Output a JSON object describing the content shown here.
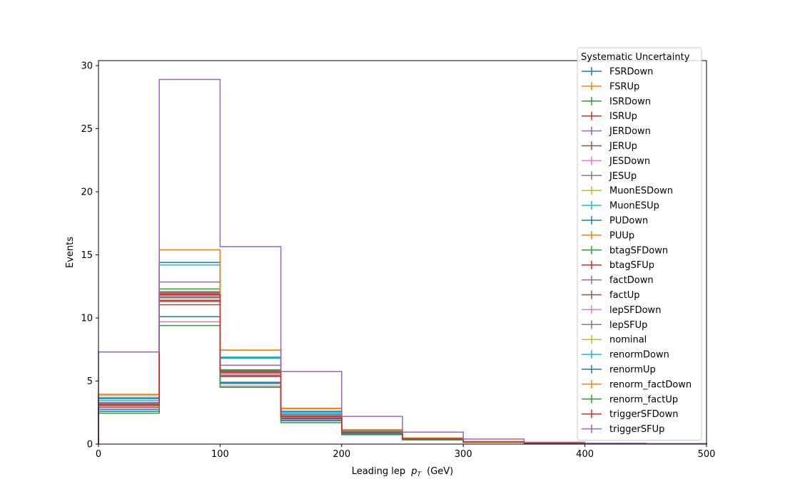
{
  "chart_data": {
    "type": "step",
    "xlabel": "Leading lep",
    "xlabel_math": "p_T",
    "xlabel_unit": "(GeV)",
    "ylabel": "Events",
    "xlim": [
      0,
      500
    ],
    "ylim": [
      0,
      30.4
    ],
    "xticks": [
      0,
      100,
      200,
      300,
      400,
      500
    ],
    "yticks": [
      0,
      5,
      10,
      15,
      20,
      25,
      30
    ],
    "bin_edges": [
      0,
      50,
      100,
      150,
      200,
      250,
      300,
      350,
      400,
      450,
      500
    ],
    "legend": {
      "title": "Systematic Uncertainty",
      "placement": "upper-right"
    },
    "series": [
      {
        "name": "FSRDown",
        "color": "#1f77b4",
        "values": [
          2.75,
          10.1,
          4.8,
          2.0,
          0.9,
          0.42,
          0.17,
          0.08,
          0.04,
          0.02
        ]
      },
      {
        "name": "FSRUp",
        "color": "#ff7f0e",
        "values": [
          3.95,
          15.4,
          7.45,
          2.85,
          1.15,
          0.48,
          0.2,
          0.09,
          0.045,
          0.02
        ]
      },
      {
        "name": "ISRDown",
        "color": "#2ca02c",
        "values": [
          3.1,
          11.6,
          5.6,
          2.15,
          0.93,
          0.42,
          0.17,
          0.08,
          0.04,
          0.02
        ]
      },
      {
        "name": "ISRUp",
        "color": "#d62728",
        "values": [
          3.2,
          12.0,
          5.8,
          2.2,
          0.95,
          0.44,
          0.18,
          0.08,
          0.04,
          0.02
        ]
      },
      {
        "name": "JERDown",
        "color": "#9467bd",
        "values": [
          3.1,
          11.7,
          5.6,
          2.15,
          0.93,
          0.43,
          0.17,
          0.08,
          0.04,
          0.02
        ]
      },
      {
        "name": "JERUp",
        "color": "#8c564b",
        "values": [
          3.0,
          11.05,
          5.35,
          2.05,
          0.9,
          0.41,
          0.17,
          0.08,
          0.04,
          0.02
        ]
      },
      {
        "name": "JESDown",
        "color": "#e377c2",
        "values": [
          2.9,
          9.7,
          4.6,
          1.9,
          0.87,
          0.4,
          0.16,
          0.07,
          0.035,
          0.02
        ]
      },
      {
        "name": "JESUp",
        "color": "#7f7f7f",
        "values": [
          3.3,
          12.1,
          5.9,
          2.25,
          0.98,
          0.45,
          0.18,
          0.08,
          0.04,
          0.02
        ]
      },
      {
        "name": "MuonESDown",
        "color": "#bcbd22",
        "values": [
          3.05,
          11.8,
          5.75,
          2.2,
          0.95,
          0.43,
          0.17,
          0.08,
          0.04,
          0.02
        ]
      },
      {
        "name": "MuonESUp",
        "color": "#17becf",
        "values": [
          3.7,
          14.2,
          6.8,
          2.55,
          1.05,
          0.46,
          0.19,
          0.08,
          0.04,
          0.02
        ]
      },
      {
        "name": "PUDown",
        "color": "#1f77b4",
        "values": [
          3.6,
          14.4,
          6.85,
          2.6,
          1.05,
          0.46,
          0.19,
          0.08,
          0.04,
          0.02
        ]
      },
      {
        "name": "PUUp",
        "color": "#ff7f0e",
        "values": [
          2.95,
          11.9,
          5.7,
          2.15,
          0.93,
          0.42,
          0.17,
          0.08,
          0.04,
          0.02
        ]
      },
      {
        "name": "btagSFDown",
        "color": "#2ca02c",
        "values": [
          3.0,
          12.3,
          5.85,
          2.25,
          0.95,
          0.44,
          0.18,
          0.08,
          0.04,
          0.02
        ]
      },
      {
        "name": "btagSFUp",
        "color": "#d62728",
        "values": [
          3.05,
          11.4,
          5.45,
          2.1,
          0.91,
          0.42,
          0.17,
          0.08,
          0.04,
          0.02
        ]
      },
      {
        "name": "factDown",
        "color": "#9467bd",
        "values": [
          3.25,
          12.85,
          6.25,
          2.35,
          1.0,
          0.45,
          0.18,
          0.08,
          0.04,
          0.02
        ]
      },
      {
        "name": "factUp",
        "color": "#8c564b",
        "values": [
          2.9,
          11.3,
          5.45,
          2.05,
          0.9,
          0.41,
          0.17,
          0.08,
          0.04,
          0.02
        ]
      },
      {
        "name": "lepSFDown",
        "color": "#e377c2",
        "values": [
          2.95,
          11.75,
          5.6,
          2.15,
          0.92,
          0.42,
          0.17,
          0.08,
          0.04,
          0.02
        ]
      },
      {
        "name": "lepSFUp",
        "color": "#7f7f7f",
        "values": [
          3.15,
          11.95,
          5.75,
          2.2,
          0.95,
          0.43,
          0.18,
          0.08,
          0.04,
          0.02
        ]
      },
      {
        "name": "nominal",
        "color": "#bcbd22",
        "values": [
          3.05,
          11.85,
          5.7,
          2.2,
          0.94,
          0.43,
          0.17,
          0.08,
          0.04,
          0.02
        ]
      },
      {
        "name": "renormDown",
        "color": "#17becf",
        "values": [
          3.45,
          14.2,
          6.9,
          2.45,
          1.02,
          0.46,
          0.18,
          0.08,
          0.04,
          0.02
        ]
      },
      {
        "name": "renormUp",
        "color": "#1f77b4",
        "values": [
          2.6,
          10.1,
          4.9,
          1.85,
          0.82,
          0.38,
          0.15,
          0.07,
          0.035,
          0.02
        ]
      },
      {
        "name": "renorm_factDown",
        "color": "#ff7f0e",
        "values": [
          3.9,
          15.4,
          7.45,
          2.8,
          1.12,
          0.48,
          0.2,
          0.09,
          0.045,
          0.02
        ]
      },
      {
        "name": "renorm_factUp",
        "color": "#2ca02c",
        "values": [
          2.45,
          9.4,
          4.5,
          1.7,
          0.74,
          0.33,
          0.14,
          0.06,
          0.03,
          0.015
        ]
      },
      {
        "name": "triggerSFDown",
        "color": "#d62728",
        "values": [
          3.1,
          11.85,
          5.7,
          2.2,
          0.94,
          0.43,
          0.17,
          0.08,
          0.04,
          0.02
        ]
      },
      {
        "name": "triggerSFUp",
        "color": "#9467bd",
        "values": [
          7.3,
          28.9,
          15.65,
          5.75,
          2.2,
          0.95,
          0.4,
          0.15,
          0.07,
          0.03
        ]
      }
    ]
  }
}
